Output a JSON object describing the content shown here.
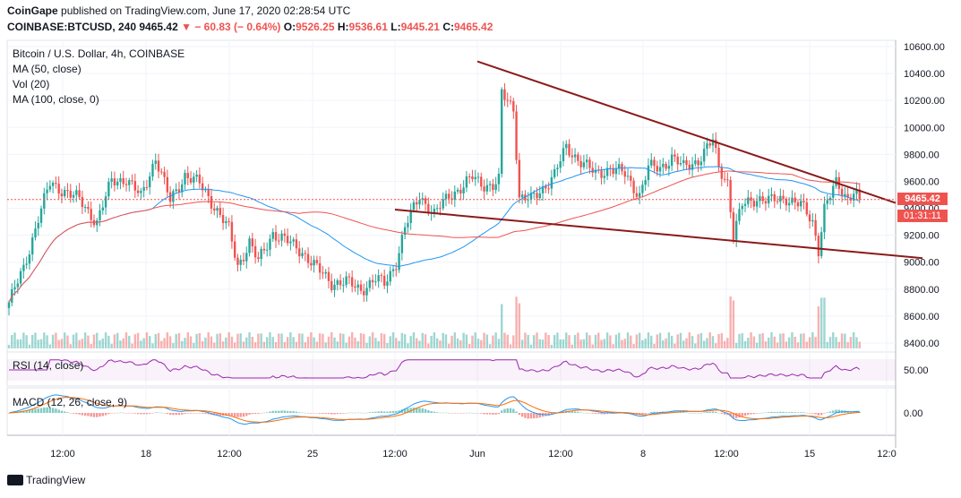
{
  "header": {
    "publisher": "CoinGape",
    "published_on": "published on TradingView.com, June 17, 2020 02:28:54 UTC",
    "symbol": "COINBASE:BTCUSD, 240",
    "last": "9465.42",
    "change": "− 60.83 (− 0.64%)",
    "o_label": "O:",
    "o": "9526.25",
    "h_label": "H:",
    "h": "9536.61",
    "l_label": "L:",
    "l": "9445.21",
    "c_label": "C:",
    "c": "9465.42"
  },
  "legend": {
    "title": "Bitcoin / U.S. Dollar, 4h, COINBASE",
    "ma50": "MA (50, close)",
    "vol": "Vol (20)",
    "ma100": "MA (100, close, 0)",
    "rsi": "RSI (14, close)",
    "macd": "MACD (12, 26, close, 9)"
  },
  "price_badge": {
    "price": "9465.42",
    "countdown": "01:31:11"
  },
  "footer": {
    "logo_text": "TradingView"
  },
  "colors": {
    "up": "#26a69a",
    "down": "#ef5350",
    "ma50": "#2196f3",
    "ma100": "#ef5350",
    "trend": "#8b1a1a",
    "rsi": "#9c27b0",
    "macd": "#2196f3",
    "signal": "#ff6d00"
  },
  "chart_data": {
    "type": "candlestick",
    "y_ticks": [
      "10600.00",
      "10400.00",
      "10200.00",
      "10000.00",
      "9800.00",
      "9600.00",
      "9400.00",
      "9200.00",
      "9000.00",
      "8800.00",
      "8600.00",
      "8400.00"
    ],
    "x_ticks": [
      "12:00",
      "18",
      "12:00",
      "25",
      "12:00",
      "Jun",
      "12:00",
      "8",
      "12:00",
      "15",
      "12:0"
    ],
    "ylim": [
      8400,
      10600
    ],
    "rsi_ticks": [
      "50.00"
    ],
    "macd_ticks": [
      "0.00"
    ],
    "close_anchors": [
      [
        0,
        8700
      ],
      [
        5,
        8950
      ],
      [
        10,
        9330
      ],
      [
        14,
        9580
      ],
      [
        20,
        9520
      ],
      [
        24,
        9460
      ],
      [
        30,
        9300
      ],
      [
        35,
        9600
      ],
      [
        40,
        9620
      ],
      [
        45,
        9480
      ],
      [
        50,
        9780
      ],
      [
        55,
        9450
      ],
      [
        60,
        9650
      ],
      [
        65,
        9580
      ],
      [
        70,
        9420
      ],
      [
        75,
        9240
      ],
      [
        78,
        8970
      ],
      [
        82,
        9150
      ],
      [
        85,
        9000
      ],
      [
        90,
        9220
      ],
      [
        95,
        9150
      ],
      [
        100,
        9080
      ],
      [
        105,
        8950
      ],
      [
        110,
        8850
      ],
      [
        115,
        8850
      ],
      [
        120,
        8800
      ],
      [
        125,
        8870
      ],
      [
        128,
        8840
      ],
      [
        132,
        9000
      ],
      [
        135,
        9250
      ],
      [
        138,
        9400
      ],
      [
        140,
        9500
      ],
      [
        145,
        9350
      ],
      [
        150,
        9500
      ],
      [
        155,
        9560
      ],
      [
        158,
        9630
      ],
      [
        162,
        9580
      ],
      [
        165,
        9560
      ],
      [
        167,
        9600
      ],
      [
        168,
        10250
      ],
      [
        170,
        10200
      ],
      [
        172,
        10150
      ],
      [
        174,
        9480
      ],
      [
        178,
        9460
      ],
      [
        182,
        9550
      ],
      [
        186,
        9650
      ],
      [
        190,
        9850
      ],
      [
        195,
        9750
      ],
      [
        200,
        9650
      ],
      [
        205,
        9700
      ],
      [
        210,
        9650
      ],
      [
        215,
        9500
      ],
      [
        218,
        9700
      ],
      [
        222,
        9700
      ],
      [
        226,
        9780
      ],
      [
        230,
        9700
      ],
      [
        235,
        9760
      ],
      [
        240,
        9900
      ],
      [
        242,
        9700
      ],
      [
        245,
        9600
      ],
      [
        247,
        9200
      ],
      [
        250,
        9420
      ],
      [
        255,
        9480
      ],
      [
        260,
        9450
      ],
      [
        265,
        9480
      ],
      [
        270,
        9420
      ],
      [
        274,
        9300
      ],
      [
        276,
        9100
      ],
      [
        278,
        9400
      ],
      [
        282,
        9580
      ],
      [
        286,
        9480
      ],
      [
        288,
        9530
      ],
      [
        290,
        9465
      ]
    ],
    "n_candles": 291
  }
}
